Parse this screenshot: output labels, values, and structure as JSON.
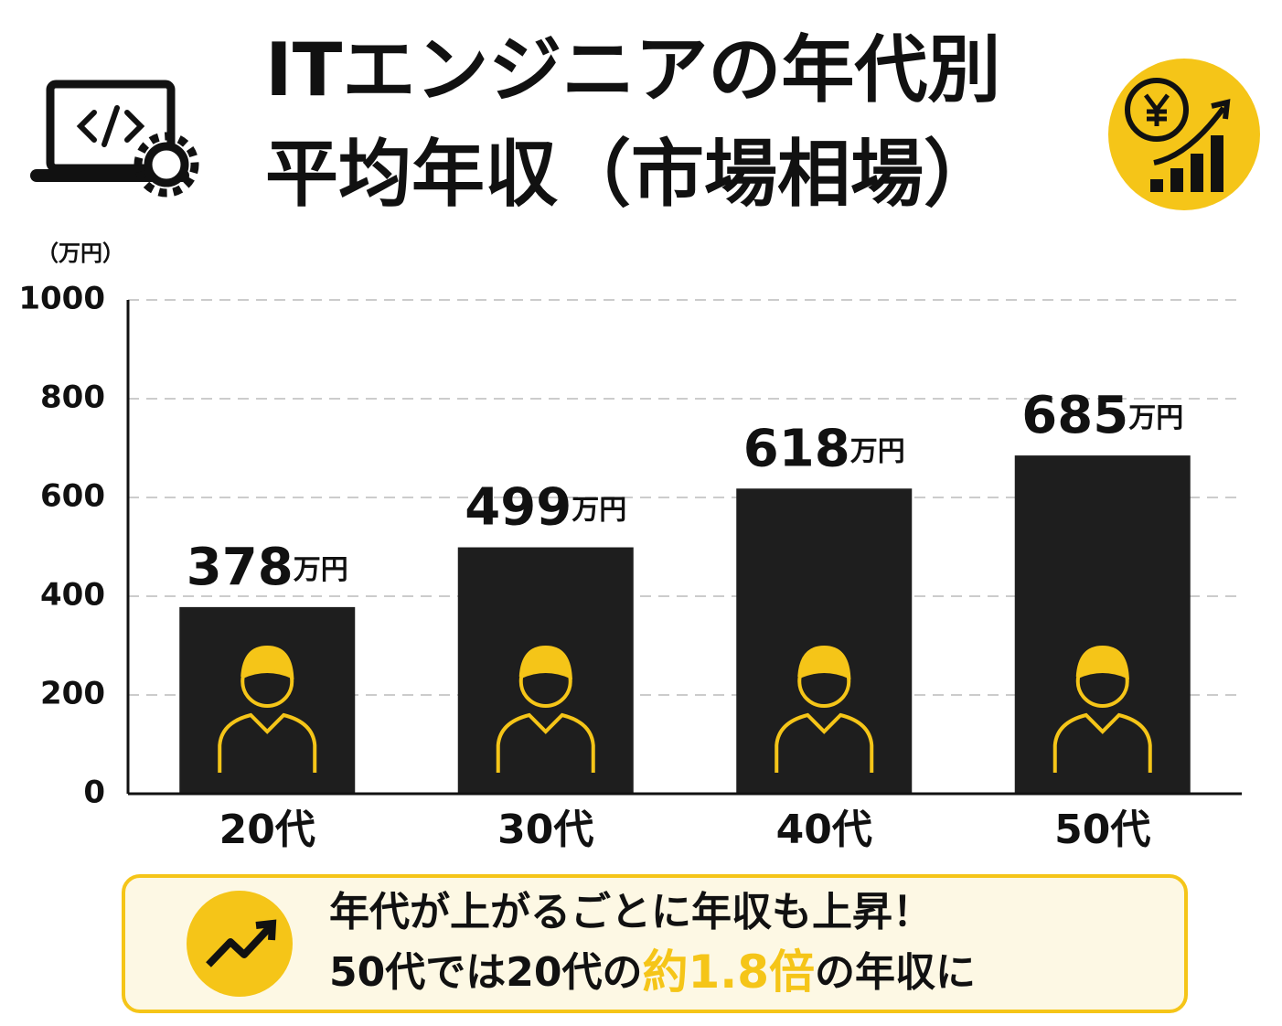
{
  "chart_data": {
    "type": "bar",
    "title": [
      "ITエンジニアの年代別",
      "平均年収（市場相場）"
    ],
    "y_unit_label": "（万円）",
    "categories": [
      "20代",
      "30代",
      "40代",
      "50代"
    ],
    "values": [
      378,
      499,
      618,
      685
    ],
    "value_labels": [
      "378万円",
      "499万円",
      "618万円",
      "685万円"
    ],
    "color": "#1e1e1e",
    "ylim": [
      0,
      1000
    ],
    "yticks": [
      0,
      200,
      400,
      600,
      800,
      1000
    ],
    "grid": true,
    "annotation": {
      "line1": "年代が上がるごとに年収も上昇！",
      "line2": [
        "50代では20代の",
        "約1.8倍",
        "の年収に"
      ],
      "highlight_color": "#f5c518"
    }
  }
}
